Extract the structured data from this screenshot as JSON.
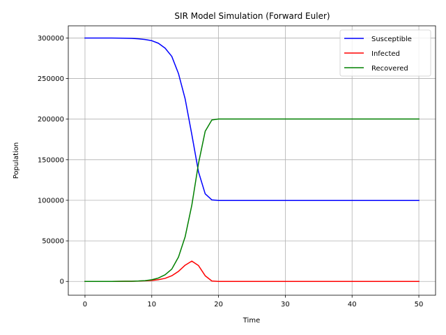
{
  "chart_data": {
    "type": "line",
    "title": "SIR Model Simulation (Forward Euler)",
    "xlabel": "Time",
    "ylabel": "Population",
    "xlim": [
      -2.5,
      52.5
    ],
    "ylim": [
      -17000,
      315000
    ],
    "xticks": [
      0,
      10,
      20,
      30,
      40,
      50
    ],
    "yticks": [
      0,
      50000,
      100000,
      150000,
      200000,
      250000,
      300000
    ],
    "grid": true,
    "legend_position": "upper-right",
    "x": [
      0,
      1,
      2,
      3,
      4,
      5,
      6,
      7,
      8,
      9,
      10,
      11,
      12,
      13,
      14,
      15,
      16,
      17,
      18,
      19,
      20,
      21,
      22,
      23,
      24,
      25,
      26,
      27,
      28,
      29,
      30,
      31,
      32,
      33,
      34,
      35,
      36,
      37,
      38,
      39,
      40,
      41,
      42,
      43,
      44,
      45,
      46,
      47,
      48,
      49,
      50
    ],
    "series": [
      {
        "name": "Susceptible",
        "color": "#0000ff",
        "values": [
          300000,
          300000,
          299990,
          299970,
          299940,
          299880,
          299750,
          299500,
          299000,
          298100,
          296700,
          293500,
          287500,
          277300,
          256200,
          225000,
          181000,
          135000,
          108000,
          100500,
          99800,
          99800,
          99800,
          99800,
          99800,
          99800,
          99800,
          99800,
          99800,
          99800,
          99800,
          99800,
          99800,
          99800,
          99800,
          99800,
          99800,
          99800,
          99800,
          99800,
          99800,
          99800,
          99800,
          99800,
          99800,
          99800,
          99800,
          99800,
          99800,
          99800,
          99800
        ]
      },
      {
        "name": "Infected",
        "color": "#ff0000",
        "values": [
          0,
          5,
          10,
          20,
          40,
          80,
          150,
          250,
          450,
          750,
          1200,
          2100,
          3800,
          7000,
          12400,
          20000,
          25000,
          19500,
          7000,
          500,
          0,
          0,
          0,
          0,
          0,
          0,
          0,
          0,
          0,
          0,
          0,
          0,
          0,
          0,
          0,
          0,
          0,
          0,
          0,
          0,
          0,
          0,
          0,
          0,
          0,
          0,
          0,
          0,
          0,
          0,
          0
        ]
      },
      {
        "name": "Recovered",
        "color": "#008000",
        "values": [
          0,
          5,
          10,
          20,
          40,
          80,
          150,
          250,
          500,
          1000,
          2000,
          4200,
          8200,
          15200,
          30000,
          55000,
          94000,
          145500,
          185000,
          199000,
          200200,
          200200,
          200200,
          200200,
          200200,
          200200,
          200200,
          200200,
          200200,
          200200,
          200200,
          200200,
          200200,
          200200,
          200200,
          200200,
          200200,
          200200,
          200200,
          200200,
          200200,
          200200,
          200200,
          200200,
          200200,
          200200,
          200200,
          200200,
          200200,
          200200,
          200200
        ]
      }
    ]
  }
}
